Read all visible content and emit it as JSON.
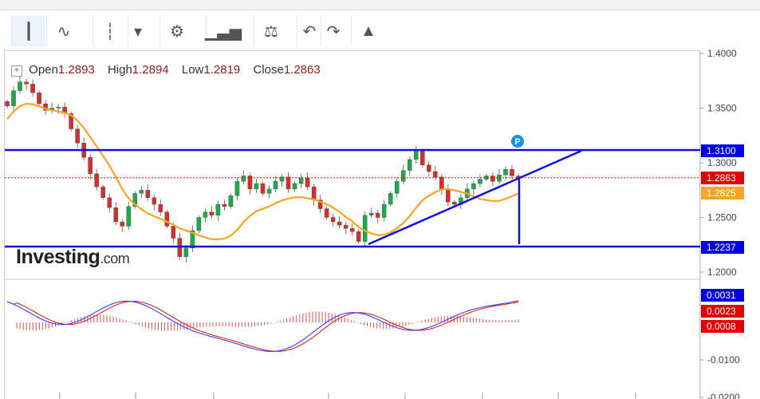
{
  "toolbar": {
    "items": [
      {
        "name": "candlestick-icon",
        "glyph": "┃"
      },
      {
        "name": "area-chart-icon",
        "glyph": "∿"
      },
      {
        "name": "bar-chart-icon",
        "glyph": "┆"
      },
      {
        "name": "chevron-down-icon",
        "glyph": "▾"
      },
      {
        "name": "gear-icon",
        "glyph": "⚙"
      },
      {
        "name": "indicators-icon",
        "glyph": "▁▃▅"
      },
      {
        "name": "balance-icon",
        "glyph": "⚖"
      },
      {
        "name": "undo-icon",
        "glyph": "↶"
      },
      {
        "name": "redo-icon",
        "glyph": "↷"
      },
      {
        "name": "alert-bell-icon",
        "glyph": "▲"
      }
    ]
  },
  "ohlc": {
    "open_label": "Open",
    "open": "1.2893",
    "high_label": "High",
    "high": "1.2894",
    "low_label": "Low",
    "low": "1.2819",
    "close_label": "Close",
    "close": "1.2863"
  },
  "logo": {
    "text": "Investing",
    "suffix": ".com"
  },
  "colors": {
    "up": "#22a84a",
    "down": "#d0312d",
    "ma": "#f5a623",
    "trendline": "#1010e0",
    "macd_line": "#3a3aff",
    "signal_line": "#e02020",
    "histogram": "#e05050",
    "price_marker": "#e00000",
    "ma_marker": "#f5a623",
    "level_marker": "#0000e0"
  },
  "chart_data": [
    {
      "type": "candlestick",
      "title": "",
      "y_axis": {
        "ticks": [
          "1.4000",
          "1.3500",
          "1.3000",
          "1.2500",
          "1.2000"
        ],
        "ylim": [
          1.195,
          1.405
        ]
      },
      "markers": {
        "level_upper": "1.3100",
        "current": "1.2863",
        "ma": "1.2825",
        "level_lower": "1.2237"
      },
      "annotation": "P",
      "close_series": [
        1.352,
        1.366,
        1.374,
        1.372,
        1.364,
        1.354,
        1.348,
        1.35,
        1.351,
        1.345,
        1.331,
        1.318,
        1.305,
        1.29,
        1.278,
        1.268,
        1.259,
        1.246,
        1.242,
        1.26,
        1.272,
        1.275,
        1.268,
        1.262,
        1.255,
        1.242,
        1.231,
        1.214,
        1.222,
        1.238,
        1.25,
        1.255,
        1.252,
        1.262,
        1.26,
        1.27,
        1.283,
        1.288,
        1.276,
        1.281,
        1.272,
        1.276,
        1.283,
        1.287,
        1.276,
        1.281,
        1.286,
        1.278,
        1.266,
        1.258,
        1.25,
        1.246,
        1.243,
        1.24,
        1.237,
        1.228,
        1.252,
        1.254,
        1.25,
        1.262,
        1.272,
        1.283,
        1.293,
        1.303,
        1.311,
        1.298,
        1.292,
        1.287,
        1.276,
        1.264,
        1.262,
        1.268,
        1.276,
        1.281,
        1.285,
        1.288,
        1.283,
        1.289,
        1.294,
        1.288,
        1.286
      ]
    },
    {
      "type": "macd",
      "y_axis": {
        "ticks": [
          "-0.0100",
          "-0.0200"
        ],
        "ylim": [
          -0.0215,
          0.0055
        ]
      },
      "markers": {
        "macd": "0.0031",
        "signal": "0.0023",
        "histogram": "0.0008"
      }
    }
  ]
}
